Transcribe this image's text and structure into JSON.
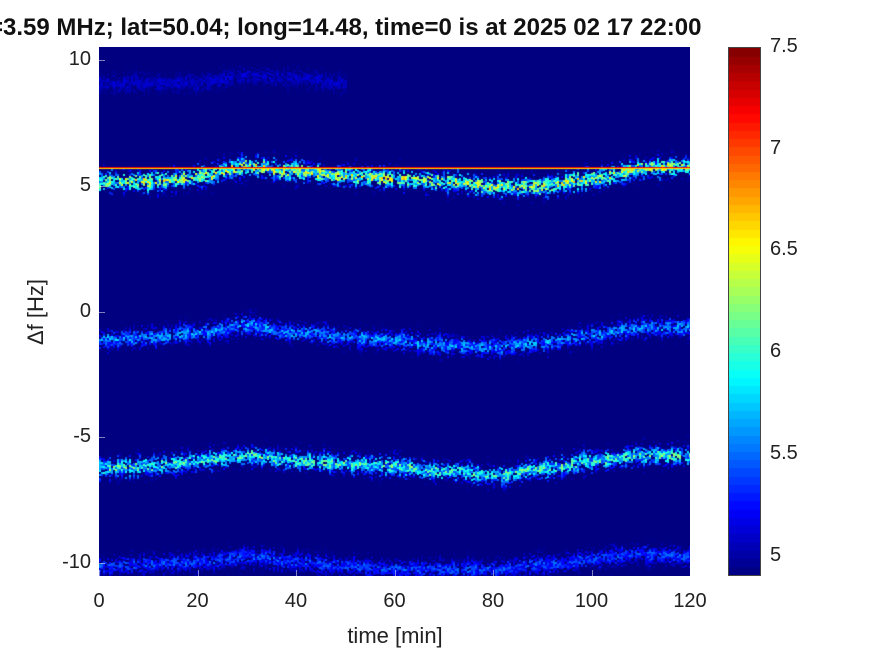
{
  "chart_data": {
    "type": "heatmap",
    "title": "=3.59 MHz;  lat=50.04; long=14.48, time=0 is at 2025 02 17 22:00",
    "xlabel": "time [min]",
    "ylabel": "Δf [Hz]",
    "xlim": [
      0,
      120
    ],
    "ylim": [
      -10.5,
      10.5
    ],
    "xticks": [
      0,
      20,
      40,
      60,
      80,
      100,
      120
    ],
    "xtick_labels": [
      "0",
      "20",
      "40",
      "60",
      "80",
      "100",
      "120"
    ],
    "yticks": [
      -10,
      -5,
      0,
      5,
      10
    ],
    "ytick_labels": [
      "-10",
      "-5",
      "0",
      "5",
      "10"
    ],
    "colorbar": {
      "colormap": "jet",
      "clim": [
        4.9,
        7.5
      ],
      "ticks": [
        5,
        5.5,
        6,
        6.5,
        7,
        7.5
      ],
      "tick_labels": [
        "5",
        "5.5",
        "6",
        "6.5",
        "7",
        "7.5"
      ]
    },
    "background_color": "#00008f",
    "traces": [
      {
        "name": "",
        "x": [
          0,
          10,
          20,
          30,
          40,
          50,
          60,
          70,
          80,
          90,
          100,
          110,
          120
        ],
        "y": [
          5.2,
          5.2,
          5.4,
          5.8,
          5.6,
          5.4,
          5.3,
          5.2,
          5.0,
          5.0,
          5.3,
          5.7,
          5.8
        ],
        "intensity": 6.3
      },
      {
        "name": "",
        "x": [
          0,
          10,
          20,
          30,
          40,
          50,
          60,
          70,
          80,
          90,
          100,
          110,
          120
        ],
        "y": [
          -1.1,
          -1.0,
          -0.8,
          -0.5,
          -0.8,
          -1.0,
          -1.1,
          -1.3,
          -1.4,
          -1.2,
          -0.9,
          -0.6,
          -0.6
        ],
        "intensity": 5.6
      },
      {
        "name": "",
        "x": [
          0,
          10,
          20,
          30,
          40,
          50,
          60,
          70,
          80,
          90,
          100,
          110,
          120
        ],
        "y": [
          -6.2,
          -6.1,
          -5.9,
          -5.7,
          -5.9,
          -6.0,
          -6.1,
          -6.3,
          -6.5,
          -6.2,
          -5.9,
          -5.7,
          -5.7
        ],
        "intensity": 6.0
      },
      {
        "name": "",
        "x": [
          0,
          10,
          20,
          30,
          40,
          50,
          60,
          70,
          80,
          90,
          100,
          110,
          120
        ],
        "y": [
          -10.1,
          -10.0,
          -9.9,
          -9.7,
          -9.9,
          -10.1,
          -10.2,
          -10.2,
          -10.2,
          -10.0,
          -9.8,
          -9.6,
          -9.7
        ],
        "intensity": 5.4
      },
      {
        "name": "",
        "x": [
          0,
          10,
          20,
          30,
          40,
          50
        ],
        "y": [
          9.1,
          9.1,
          9.1,
          9.4,
          9.3,
          9.1
        ],
        "intensity": 5.1
      }
    ],
    "constant_line": {
      "y": 5.75,
      "intensity": 7.2
    }
  }
}
